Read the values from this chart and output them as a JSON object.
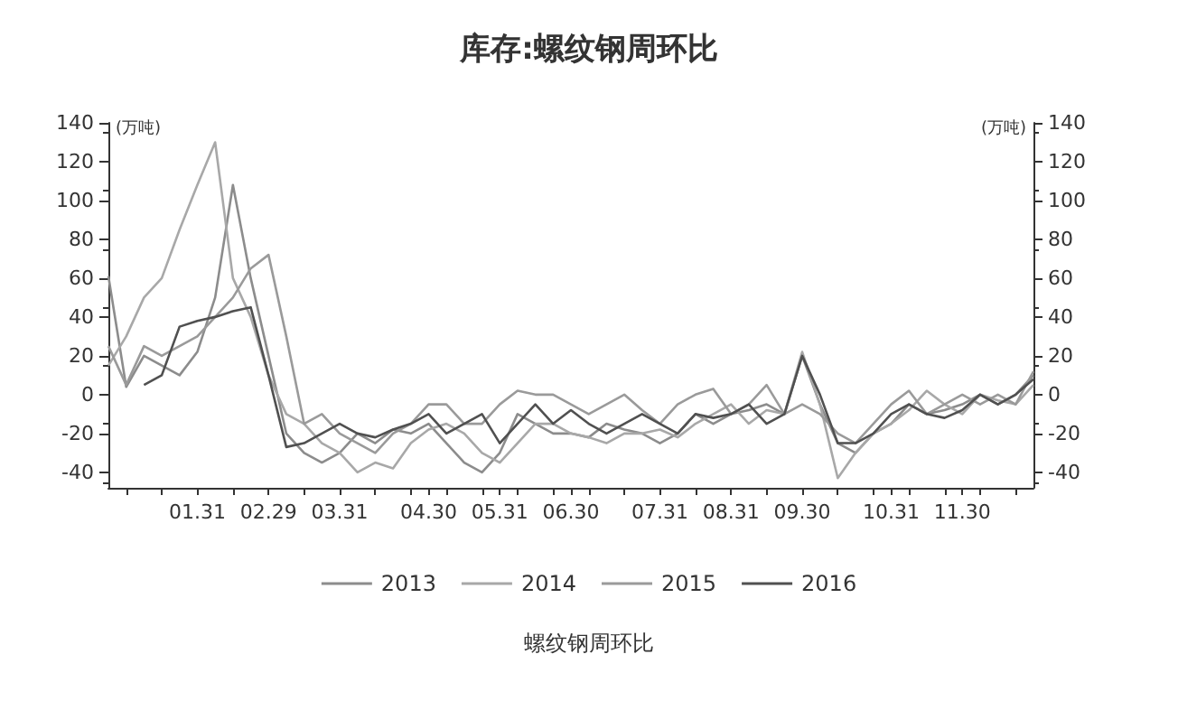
{
  "chart_data": {
    "type": "line",
    "title": "库存:螺纹钢周环比",
    "ylabel": "(万吨)",
    "y2label": "(万吨)",
    "annotations": [
      "螺纹钢周环比"
    ],
    "categories": [
      null,
      null,
      null,
      null,
      null,
      "01.31",
      null,
      null,
      null,
      "02.29",
      null,
      null,
      null,
      "03.31",
      null,
      null,
      null,
      null,
      "04.30",
      null,
      null,
      null,
      "05.31",
      null,
      null,
      null,
      "06.30",
      null,
      null,
      null,
      null,
      "07.31",
      null,
      null,
      null,
      "08.31",
      null,
      null,
      null,
      "09.30",
      null,
      null,
      null,
      null,
      "10.31",
      null,
      null,
      null,
      "11.30",
      null,
      null,
      null,
      null
    ],
    "series": [
      {
        "name": "2013",
        "color": "#8c8c8c",
        "values": [
          61,
          4,
          20,
          15,
          10,
          22,
          50,
          108,
          60,
          20,
          -20,
          -30,
          -35,
          -30,
          -20,
          -25,
          -18,
          -20,
          -15,
          -25,
          -35,
          -40,
          -30,
          -10,
          -15,
          -20,
          -20,
          -22,
          -15,
          -18,
          -20,
          -25,
          -20,
          -10,
          -15,
          -10,
          -8,
          -5,
          -10,
          20,
          -5,
          -25,
          -30,
          -20,
          -15,
          -5,
          -10,
          -8,
          -5,
          0,
          -5,
          0,
          10
        ]
      },
      {
        "name": "2014",
        "color": "#a8a8a8",
        "values": [
          15,
          30,
          50,
          60,
          85,
          108,
          130,
          60,
          40,
          10,
          -10,
          -15,
          -25,
          -30,
          -40,
          -35,
          -38,
          -25,
          -18,
          -15,
          -20,
          -30,
          -35,
          -25,
          -15,
          -15,
          -20,
          -22,
          -25,
          -20,
          -20,
          -18,
          -22,
          -15,
          -10,
          -5,
          -15,
          -8,
          -10,
          22,
          -5,
          -43,
          -30,
          -20,
          -15,
          -8,
          2,
          -5,
          -10,
          0,
          -3,
          -5,
          5
        ]
      },
      {
        "name": "2015",
        "color": "#9a9a9a",
        "values": [
          25,
          5,
          25,
          20,
          25,
          30,
          40,
          50,
          65,
          72,
          30,
          -15,
          -10,
          -20,
          -25,
          -30,
          -20,
          -15,
          -5,
          -5,
          -15,
          -15,
          -5,
          2,
          0,
          0,
          -5,
          -10,
          -5,
          0,
          -8,
          -15,
          -5,
          0,
          3,
          -10,
          -5,
          5,
          -10,
          -5,
          -10,
          -20,
          -25,
          -15,
          -5,
          2,
          -10,
          -5,
          0,
          -5,
          0,
          -5,
          12
        ]
      },
      {
        "name": "2016",
        "color": "#505050",
        "values": [
          null,
          null,
          5,
          10,
          35,
          38,
          40,
          43,
          45,
          10,
          -27,
          -25,
          -20,
          -15,
          -20,
          -22,
          -18,
          -15,
          -10,
          -20,
          -15,
          -10,
          -25,
          -15,
          -5,
          -15,
          -8,
          -15,
          -20,
          -15,
          -10,
          -15,
          -20,
          -10,
          -12,
          -10,
          -5,
          -15,
          -10,
          20,
          0,
          -25,
          -25,
          -20,
          -10,
          -5,
          -10,
          -12,
          -8,
          0,
          -5,
          0,
          8
        ]
      }
    ],
    "ylim": [
      -48,
      140
    ],
    "yticks": [
      -40,
      -20,
      0,
      20,
      40,
      60,
      80,
      100,
      120,
      140
    ],
    "y2lim": [
      -48,
      140
    ],
    "y2ticks": [
      -40,
      -20,
      0,
      20,
      40,
      60,
      80,
      100,
      120,
      140
    ],
    "grid": false,
    "legend": "bottom",
    "marker": "none",
    "line_style": "solid"
  }
}
